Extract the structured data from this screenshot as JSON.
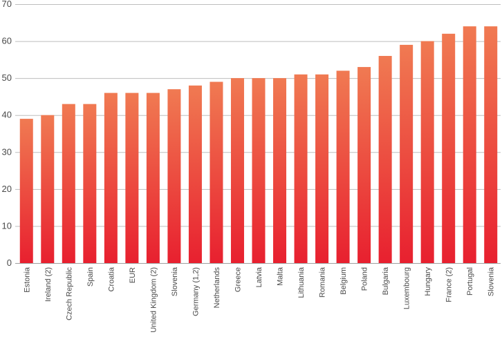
{
  "chart_data": {
    "type": "bar",
    "title": "",
    "xlabel": "",
    "ylabel": "",
    "ylim": [
      0,
      70
    ],
    "yticks": [
      0,
      10,
      20,
      30,
      40,
      50,
      60,
      70
    ],
    "grid": true,
    "colors": {
      "bar_top": "#f07a52",
      "bar_bottom": "#e8202f",
      "grid": "#bdbdbd",
      "text": "#4a4a4a"
    },
    "categories": [
      "Estonia",
      "Ireland (2)",
      "Czech Republic",
      "Spain",
      "Croatia",
      "EUR",
      "United Kingdom (2)",
      "Slovenia",
      "Germany (1,2)",
      "Netherlands",
      "Greece",
      "Latvia",
      "Malta",
      "Lithuania",
      "Romania",
      "Belgium",
      "Poland",
      "Bulgaria",
      "Luxembourg",
      "Hungary",
      "France (2)",
      "Portugal",
      "Slovenia"
    ],
    "values": [
      39,
      40,
      43,
      43,
      46,
      46,
      46,
      47,
      48,
      49,
      50,
      50,
      50,
      51,
      51,
      52,
      53,
      56,
      59,
      60,
      62,
      64,
      64
    ]
  }
}
